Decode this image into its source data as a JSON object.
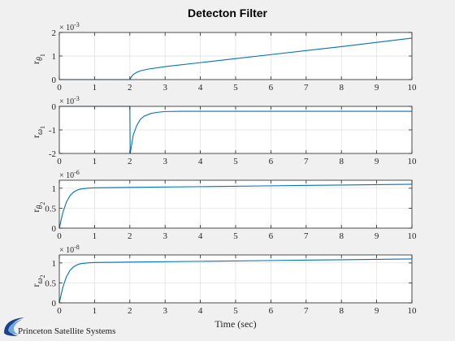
{
  "chart_data": {
    "title": "Detecton Filter",
    "xlabel": "Time (sec)",
    "type": "line",
    "xlim": [
      0,
      10
    ],
    "xticks": [
      0,
      1,
      2,
      3,
      4,
      5,
      6,
      7,
      8,
      9,
      10
    ],
    "grid": true,
    "line_color": "#0072bd",
    "subplots": [
      {
        "type": "line",
        "ylabel": {
          "base": "r",
          "sub1": "θ",
          "sub2": "1"
        },
        "exponent": {
          "base": "× 10",
          "power": "-3"
        },
        "ylim": [
          0,
          2
        ],
        "yticks": [
          0,
          1,
          2
        ],
        "x": [
          0,
          1.9,
          2.0,
          2.05,
          2.1,
          2.2,
          2.3,
          2.5,
          3.0,
          4.0,
          5.0,
          6.0,
          7.0,
          8.0,
          9.0,
          10.0
        ],
        "y": [
          0,
          0,
          0,
          0.13,
          0.22,
          0.31,
          0.37,
          0.44,
          0.55,
          0.72,
          0.89,
          1.06,
          1.23,
          1.4,
          1.58,
          1.76
        ]
      },
      {
        "type": "line",
        "ylabel": {
          "base": "r",
          "sub1": "ω",
          "sub2": "1"
        },
        "exponent": {
          "base": "× 10",
          "power": "-3"
        },
        "ylim": [
          -2,
          0
        ],
        "yticks": [
          -2,
          -1,
          0
        ],
        "x": [
          0,
          1.99,
          2.0,
          2.01,
          2.1,
          2.2,
          2.3,
          2.4,
          2.6,
          2.8,
          3.0,
          3.5,
          4,
          6,
          8,
          10
        ],
        "y": [
          0,
          0,
          0,
          -2.0,
          -1.2,
          -0.8,
          -0.55,
          -0.42,
          -0.3,
          -0.25,
          -0.22,
          -0.21,
          -0.21,
          -0.21,
          -0.21,
          -0.21
        ]
      },
      {
        "type": "line",
        "ylabel": {
          "base": "r",
          "sub1": "θ",
          "sub2": "2"
        },
        "exponent": {
          "base": "× 10",
          "power": "-6"
        },
        "ylim": [
          0,
          1.2
        ],
        "yticks": [
          0,
          0.5,
          1
        ],
        "x": [
          0,
          0.05,
          0.1,
          0.2,
          0.3,
          0.4,
          0.5,
          0.6,
          0.8,
          1.0,
          2.0,
          4.0,
          6.0,
          8.0,
          10.0
        ],
        "y": [
          0,
          0.2,
          0.39,
          0.65,
          0.81,
          0.9,
          0.95,
          0.98,
          1.0,
          1.01,
          1.02,
          1.04,
          1.06,
          1.08,
          1.1
        ]
      },
      {
        "type": "line",
        "ylabel": {
          "base": "r",
          "sub1": "ω",
          "sub2": "2"
        },
        "exponent": {
          "base": "× 10",
          "power": "-8"
        },
        "ylim": [
          0,
          1.2
        ],
        "yticks": [
          0,
          0.5,
          1
        ],
        "x": [
          0,
          0.05,
          0.1,
          0.2,
          0.3,
          0.4,
          0.5,
          0.6,
          0.8,
          1.0,
          2.0,
          4.0,
          6.0,
          8.0,
          10.0
        ],
        "y": [
          0,
          0.2,
          0.39,
          0.65,
          0.81,
          0.9,
          0.95,
          0.98,
          1.0,
          1.01,
          1.02,
          1.04,
          1.06,
          1.08,
          1.1
        ]
      }
    ]
  },
  "logo": {
    "text": "Princeton Satellite Systems",
    "colors": {
      "swoosh_dark": "#1f3f8f",
      "swoosh_light": "#6fa8dc"
    }
  }
}
